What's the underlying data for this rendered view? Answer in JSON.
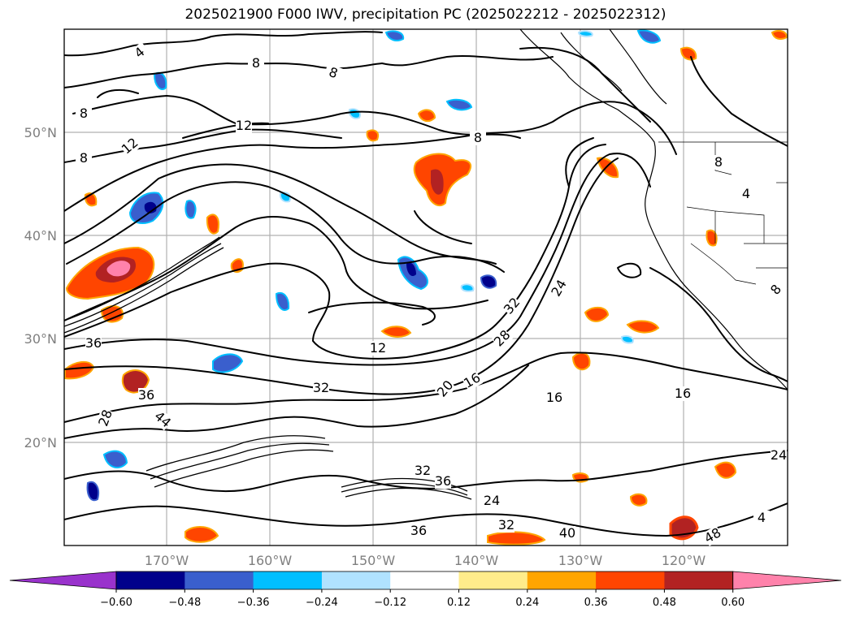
{
  "title": "2025021900 F000 IWV, precipitation PC (2025022212 - 2025022312)",
  "lat_labels": [
    "50°N",
    "40°N",
    "30°N",
    "20°N"
  ],
  "lon_labels": [
    "170°W",
    "160°W",
    "150°W",
    "140°W",
    "130°W",
    "120°W"
  ],
  "colorbar": {
    "ticks": [
      "−0.60",
      "−0.48",
      "−0.36",
      "−0.24",
      "−0.12",
      "0.12",
      "0.24",
      "0.36",
      "0.48",
      "0.60"
    ],
    "colors": [
      "#9932cc",
      "#00008b",
      "#3a5fcd",
      "#00bfff",
      "#b0e2ff",
      "#ffffff",
      "#ffec8b",
      "#ffa500",
      "#ff4500",
      "#b22222",
      "#ff82ab"
    ]
  },
  "contour_labels": [
    "4",
    "8",
    "8",
    "8",
    "12",
    "12",
    "8",
    "8",
    "12",
    "16",
    "16",
    "16",
    "20",
    "24",
    "24",
    "24",
    "28",
    "28",
    "32",
    "32",
    "32",
    "32",
    "36",
    "36",
    "36",
    "36",
    "40",
    "44",
    "48",
    "4",
    "4",
    "8",
    "8"
  ]
}
